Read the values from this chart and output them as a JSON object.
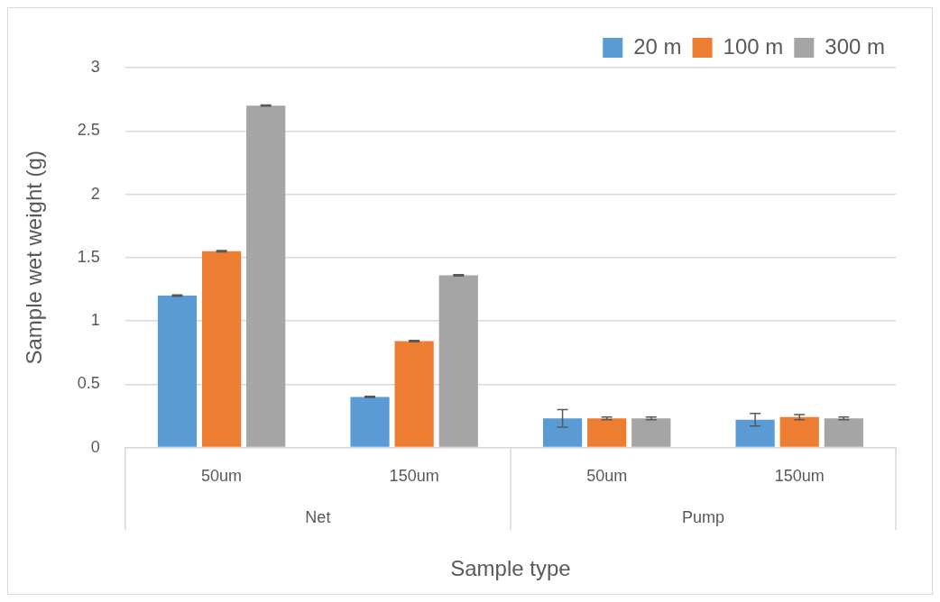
{
  "chart_data": {
    "type": "bar",
    "xlabel": "Sample type",
    "ylabel": "Sample wet weight (g)",
    "categories": [
      "50um",
      "150um",
      "50um",
      "150um"
    ],
    "series": [
      {
        "name": "20 m",
        "color": "#5b9bd5",
        "values": [
          1.2,
          0.4,
          0.23,
          0.22
        ],
        "errors": [
          0.005,
          0.005,
          0.07,
          0.05
        ]
      },
      {
        "name": "100 m",
        "color": "#ed7d31",
        "values": [
          1.55,
          0.84,
          0.23,
          0.24
        ],
        "errors": [
          0.005,
          0.005,
          0.01,
          0.02
        ]
      },
      {
        "name": "300 m",
        "color": "#a5a5a5",
        "values": [
          2.7,
          1.36,
          0.23,
          0.23
        ],
        "errors": [
          0.005,
          0.005,
          0.01,
          0.01
        ]
      }
    ],
    "annotations": [
      "Net",
      "Pump"
    ],
    "ylim": [
      0,
      3
    ],
    "yticks": [
      0,
      0.5,
      1,
      1.5,
      2,
      2.5,
      3
    ],
    "grid": "y",
    "legend": "top right"
  }
}
